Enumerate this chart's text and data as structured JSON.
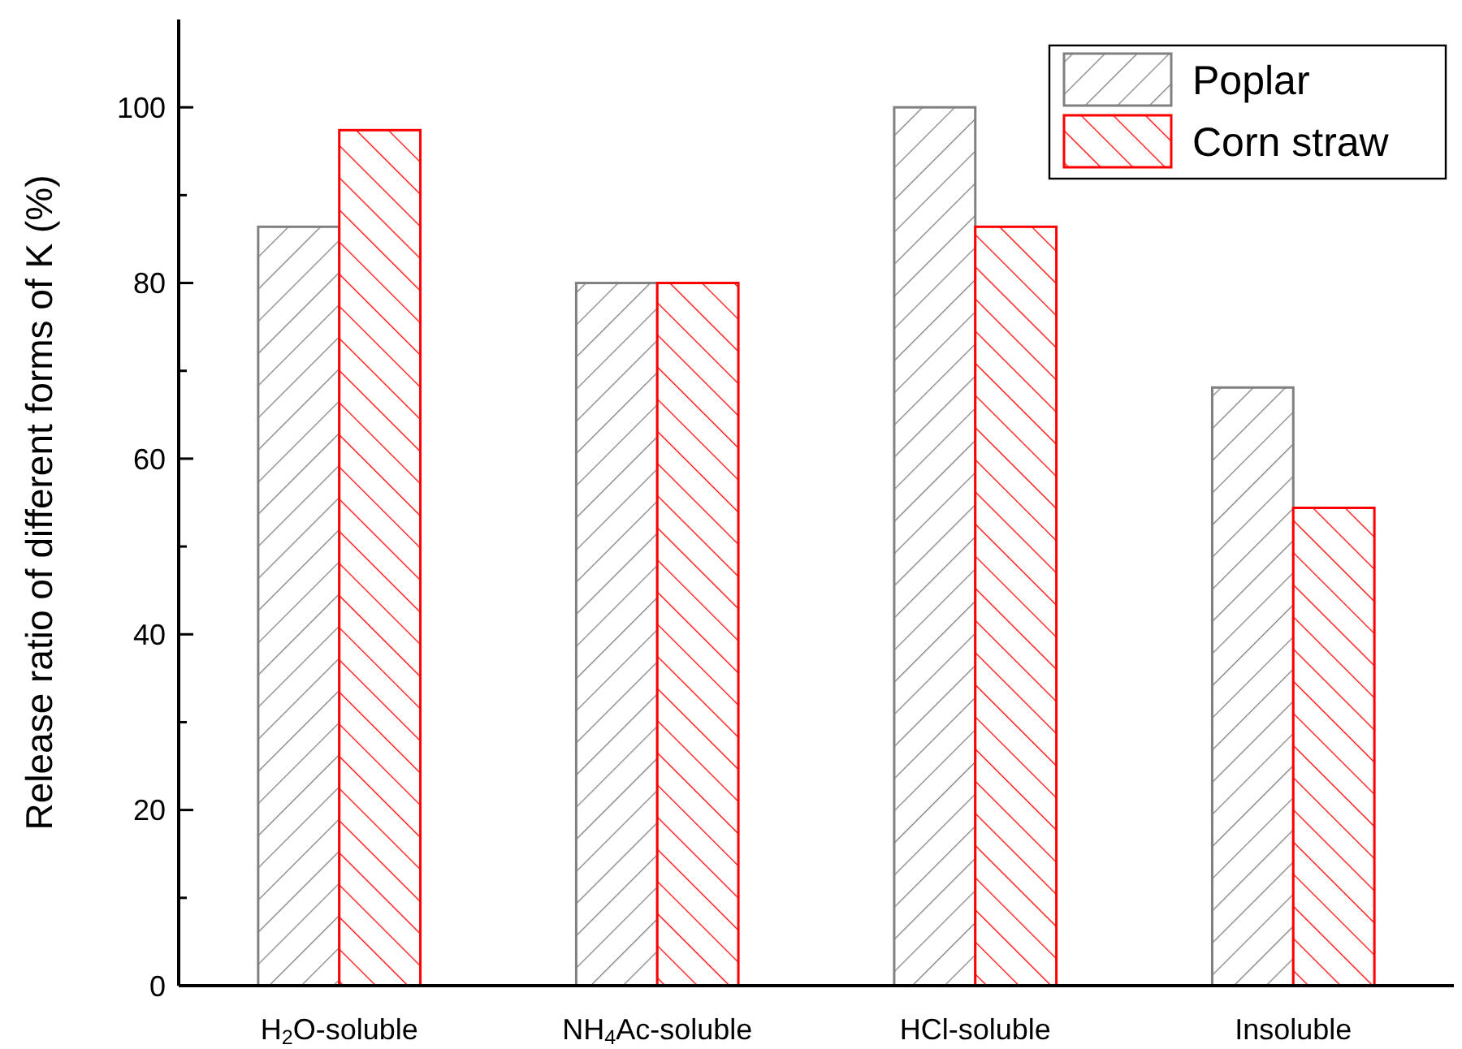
{
  "chart_data": {
    "type": "bar",
    "ylabel": "Release ratio of different forms of K (%)",
    "categories": [
      "H$_{2}$O-soluble",
      "NH$_{4}$Ac-soluble",
      "HCl-soluble",
      "Insoluble"
    ],
    "series": [
      {
        "name": "Poplar",
        "color": "#808080",
        "values": [
          86.4,
          80,
          100,
          68.1
        ]
      },
      {
        "name": "Corn straw",
        "color": "#ff0000",
        "values": [
          97.4,
          80,
          86.4,
          54.4
        ]
      }
    ],
    "ylim": [
      0,
      110
    ],
    "yticks": [
      0,
      {
        "value": 10,
        "label": null
      },
      20,
      {
        "value": 30,
        "label": null
      },
      40,
      {
        "value": 50,
        "label": null
      },
      60,
      {
        "value": 70,
        "label": null
      },
      80,
      {
        "value": 90,
        "label": null
      },
      100
    ],
    "legend": "top right",
    "grid": false
  }
}
